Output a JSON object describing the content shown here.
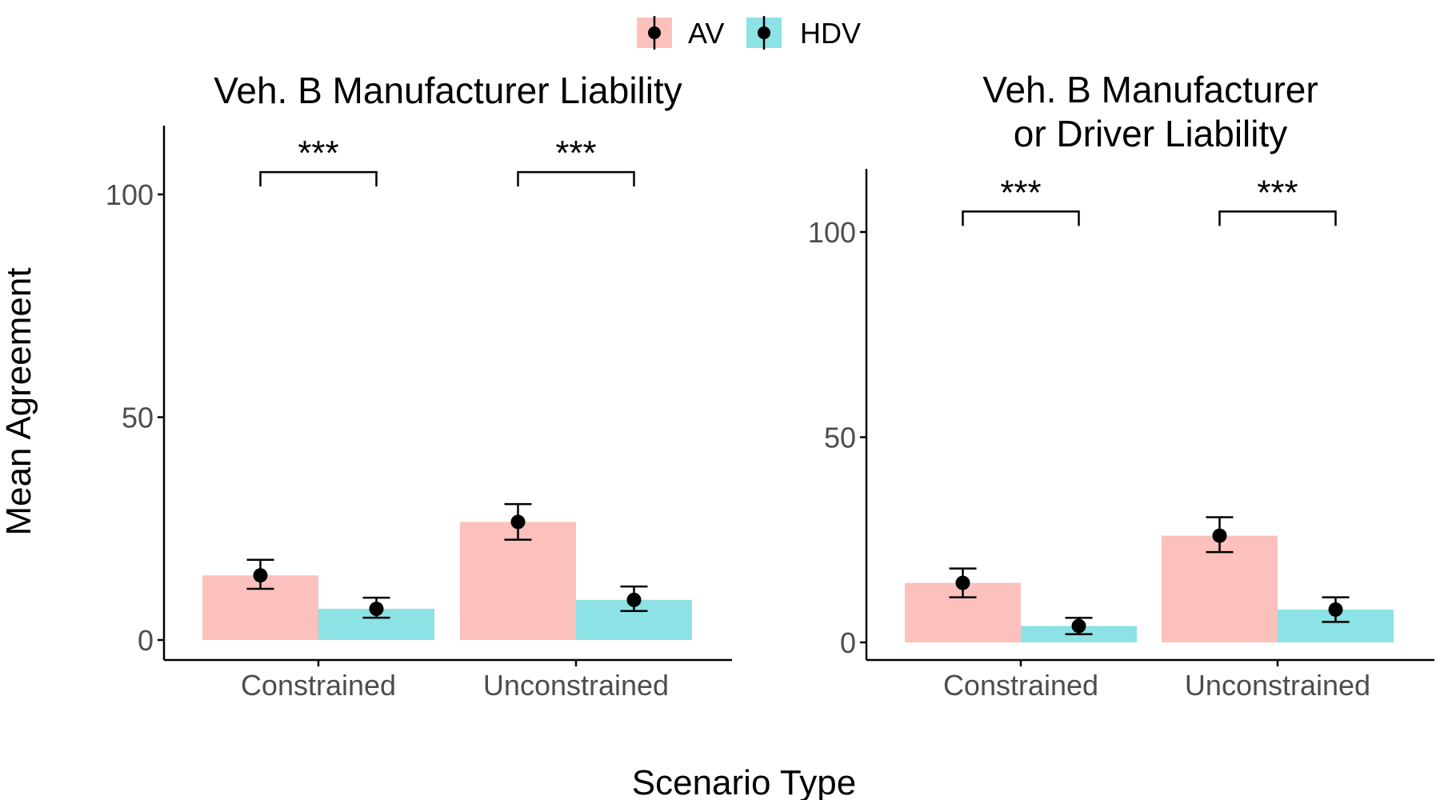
{
  "colors": {
    "AV": "#F8766D",
    "HDV": "#00BFC4",
    "bar_opacity": 0.45,
    "axis": "#000000",
    "point": "#000000"
  },
  "legend": {
    "position": "top-center",
    "entries": [
      "AV",
      "HDV"
    ]
  },
  "shared_labels": {
    "xlabel": "Scenario Type",
    "ylabel": "Mean Agreement"
  },
  "chart_data": [
    {
      "type": "bar",
      "title_lines": [
        "Veh. B Manufacturer Liability"
      ],
      "categories": [
        "Constrained",
        "Unconstrained"
      ],
      "series": [
        {
          "name": "AV",
          "values": [
            14.5,
            26.5
          ],
          "err_low": [
            11.5,
            22.5
          ],
          "err_high": [
            18.0,
            30.5
          ]
        },
        {
          "name": "HDV",
          "values": [
            7.0,
            9.0
          ],
          "err_low": [
            5.0,
            6.5
          ],
          "err_high": [
            9.5,
            12.0
          ]
        }
      ],
      "ylim": [
        -4.5,
        115
      ],
      "yticks": [
        0,
        50,
        100
      ],
      "grid": false,
      "significance": [
        {
          "category": "Constrained",
          "label": "***",
          "y": 105
        },
        {
          "category": "Unconstrained",
          "label": "***",
          "y": 105
        }
      ]
    },
    {
      "type": "bar",
      "title_lines": [
        "Veh. B Manufacturer",
        "or Driver Liability"
      ],
      "categories": [
        "Constrained",
        "Unconstrained"
      ],
      "series": [
        {
          "name": "AV",
          "values": [
            14.5,
            26.0
          ],
          "err_low": [
            11.0,
            22.0
          ],
          "err_high": [
            18.0,
            30.5
          ]
        },
        {
          "name": "HDV",
          "values": [
            4.0,
            8.0
          ],
          "err_low": [
            2.0,
            5.0
          ],
          "err_high": [
            6.0,
            11.0
          ]
        }
      ],
      "ylim": [
        -4.5,
        115
      ],
      "yticks": [
        0,
        50,
        100
      ],
      "grid": false,
      "significance": [
        {
          "category": "Constrained",
          "label": "***",
          "y": 105
        },
        {
          "category": "Unconstrained",
          "label": "***",
          "y": 105
        }
      ]
    }
  ]
}
